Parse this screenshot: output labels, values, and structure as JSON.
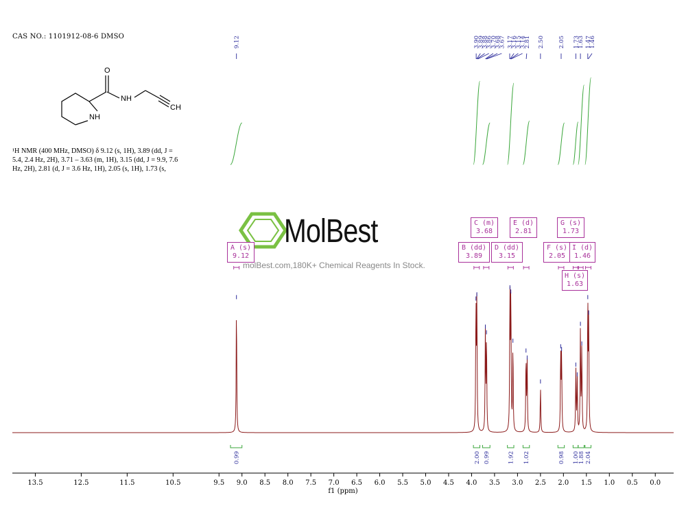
{
  "header": {
    "cas_line": "CAS NO.: 1101912-08-6 DMSO"
  },
  "molecule": {
    "atom_labels": [
      {
        "id": "O",
        "text": "O"
      },
      {
        "id": "NH_amide",
        "text": "NH"
      },
      {
        "id": "NH_ring",
        "text": "NH"
      },
      {
        "id": "CH",
        "text": "CH"
      }
    ]
  },
  "nmr_description": {
    "line1": "¹H NMR (400 MHz, DMSO) δ 9.12 (s, 1H), 3.89 (dd, J =",
    "line2": "5.4, 2.4 Hz, 2H), 3.71 – 3.63 (m, 1H), 3.15 (dd, J = 9.9, 7.6",
    "line3": "Hz, 2H), 2.81 (d, J = 3.6 Hz, 1H), 2.05 (s, 1H), 1.73 (s,"
  },
  "watermark": {
    "logo_text": "MolBest",
    "tagline": "molBest.com,180K+ Chemical Reagents In Stock."
  },
  "colors": {
    "spectrum": "#8b1a1a",
    "integral": "#3aa63a",
    "peak_label": "#2a2a9a",
    "multiplet": "#a8309a",
    "logo_green": "#7ac143"
  },
  "chart_data": {
    "type": "line",
    "xlabel": "f1 (ppm)",
    "xlim": [
      14.0,
      -0.4
    ],
    "x_reversed": true,
    "ticks": [
      "13.5",
      "12.5",
      "11.5",
      "10.5",
      "9.5",
      "9.0",
      "8.5",
      "8.0",
      "7.5",
      "7.0",
      "6.5",
      "6.0",
      "5.5",
      "5.0",
      "4.5",
      "4.0",
      "3.5",
      "3.0",
      "2.5",
      "2.0",
      "1.5",
      "1.0",
      "0.5",
      "0.0"
    ],
    "tick_values": [
      13.5,
      12.5,
      11.5,
      10.5,
      9.5,
      9.0,
      8.5,
      8.0,
      7.5,
      7.0,
      6.5,
      6.0,
      5.5,
      5.0,
      4.5,
      4.0,
      3.5,
      3.0,
      2.5,
      2.0,
      1.5,
      1.0,
      0.5,
      0.0
    ],
    "peak_labels": [
      {
        "ppm": 9.12,
        "text": "9.12"
      },
      {
        "ppm": 3.9,
        "text": "3.90"
      },
      {
        "ppm": 3.89,
        "text": "3.89"
      },
      {
        "ppm": 3.88,
        "text": "3.88"
      },
      {
        "ppm": 3.86,
        "text": "3.86"
      },
      {
        "ppm": 3.7,
        "text": "3.70"
      },
      {
        "ppm": 3.68,
        "text": "3.68"
      },
      {
        "ppm": 3.67,
        "text": "3.67"
      },
      {
        "ppm": 3.17,
        "text": "3.17"
      },
      {
        "ppm": 3.16,
        "text": "3.16"
      },
      {
        "ppm": 3.15,
        "text": "3.15"
      },
      {
        "ppm": 3.14,
        "text": "3.14"
      },
      {
        "ppm": 2.81,
        "text": "2.81"
      },
      {
        "ppm": 2.5,
        "text": "2.50"
      },
      {
        "ppm": 2.05,
        "text": "2.05"
      },
      {
        "ppm": 1.73,
        "text": "1.73"
      },
      {
        "ppm": 1.63,
        "text": "1.63"
      },
      {
        "ppm": 1.47,
        "text": "1.47"
      },
      {
        "ppm": 1.46,
        "text": "1.46"
      }
    ],
    "peaks": [
      {
        "ppm": 9.12,
        "height": 0.93
      },
      {
        "ppm": 3.905,
        "height": 0.92
      },
      {
        "ppm": 3.885,
        "height": 0.95
      },
      {
        "ppm": 3.7,
        "height": 0.72
      },
      {
        "ppm": 3.675,
        "height": 0.68
      },
      {
        "ppm": 3.165,
        "height": 1.0
      },
      {
        "ppm": 3.145,
        "height": 0.97
      },
      {
        "ppm": 3.1,
        "height": 0.62
      },
      {
        "ppm": 2.815,
        "height": 0.55
      },
      {
        "ppm": 2.79,
        "height": 0.5
      },
      {
        "ppm": 2.5,
        "height": 0.33
      },
      {
        "ppm": 2.06,
        "height": 0.58
      },
      {
        "ppm": 2.04,
        "height": 0.56
      },
      {
        "ppm": 1.73,
        "height": 0.45
      },
      {
        "ppm": 1.7,
        "height": 0.38
      },
      {
        "ppm": 1.63,
        "height": 0.74
      },
      {
        "ppm": 1.6,
        "height": 0.6
      },
      {
        "ppm": 1.47,
        "height": 0.93
      },
      {
        "ppm": 1.45,
        "height": 0.82
      }
    ],
    "integrals": [
      {
        "start": 9.25,
        "end": 9.0,
        "value": "0.99",
        "rise": 0.45
      },
      {
        "start": 3.96,
        "end": 3.82,
        "value": "2.00",
        "rise": 0.9
      },
      {
        "start": 3.76,
        "end": 3.6,
        "value": "0.99",
        "rise": 0.45
      },
      {
        "start": 3.22,
        "end": 3.08,
        "value": "1.92",
        "rise": 0.88
      },
      {
        "start": 2.88,
        "end": 2.74,
        "value": "1.02",
        "rise": 0.47
      },
      {
        "start": 2.12,
        "end": 1.98,
        "value": "0.98",
        "rise": 0.45
      },
      {
        "start": 1.79,
        "end": 1.68,
        "value": "1.00",
        "rise": 0.46
      },
      {
        "start": 1.68,
        "end": 1.55,
        "value": "1.88",
        "rise": 0.86
      },
      {
        "start": 1.53,
        "end": 1.4,
        "value": "2.04",
        "rise": 0.94
      }
    ],
    "multiplets": [
      {
        "id": "A",
        "header": "A (s)",
        "value": "9.12",
        "ppm": 9.12
      },
      {
        "id": "B",
        "header": "B (dd)",
        "value": "3.89",
        "ppm": 3.89
      },
      {
        "id": "C",
        "header": "C (m)",
        "value": "3.68",
        "ppm": 3.68
      },
      {
        "id": "D",
        "header": "D (dd)",
        "value": "3.15",
        "ppm": 3.15
      },
      {
        "id": "E",
        "header": "E (d)",
        "value": "2.81",
        "ppm": 2.81
      },
      {
        "id": "F",
        "header": "F (s)",
        "value": "2.05",
        "ppm": 2.05
      },
      {
        "id": "G",
        "header": "G (s)",
        "value": "1.73",
        "ppm": 1.73
      },
      {
        "id": "H",
        "header": "H (s)",
        "value": "1.63",
        "ppm": 1.63
      },
      {
        "id": "I",
        "header": "I (d)",
        "value": "1.46",
        "ppm": 1.46
      }
    ]
  }
}
